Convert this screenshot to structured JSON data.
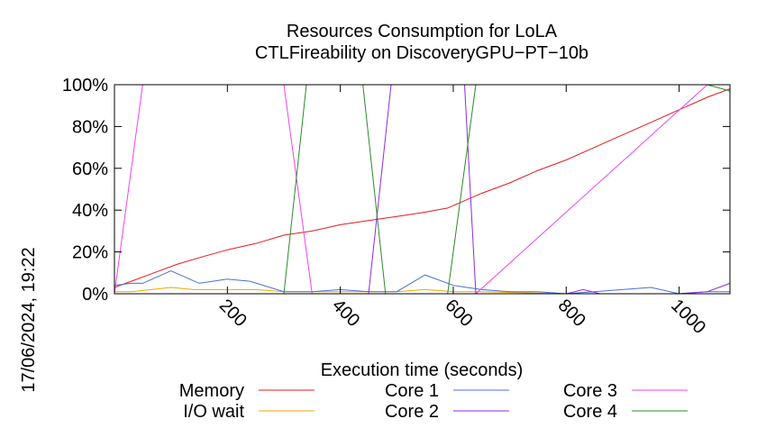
{
  "stamp": "17/06/2024, 19:22",
  "chart_data": {
    "type": "line",
    "title": "Resources Consumption for LoLA",
    "subtitle": "CTLFireability on DiscoveryGPU−PT−10b",
    "xlabel": "Execution time (seconds)",
    "ylabel": "",
    "xlim": [
      0,
      1090
    ],
    "ylim": [
      0,
      100
    ],
    "x_ticks": [
      200,
      400,
      600,
      800,
      1000
    ],
    "x_tick_labels": [
      "200",
      "400",
      "600",
      "800",
      "1000"
    ],
    "y_ticks": [
      0,
      20,
      40,
      60,
      80,
      100
    ],
    "y_tick_labels": [
      "0%",
      "20%",
      "40%",
      "60%",
      "80%",
      "100%"
    ],
    "grid": false,
    "legend_position": "bottom",
    "series": [
      {
        "name": "Memory",
        "color": "#e41a1c",
        "x": [
          0,
          30,
          70,
          110,
          160,
          200,
          250,
          300,
          350,
          400,
          450,
          500,
          550,
          590,
          650,
          700,
          750,
          800,
          850,
          900,
          950,
          1000,
          1050,
          1090
        ],
        "y": [
          3,
          6,
          10,
          14,
          18,
          21,
          24,
          28,
          30,
          33,
          35,
          37,
          39,
          41,
          48,
          53,
          59,
          64,
          70,
          76,
          82,
          88,
          94,
          98
        ]
      },
      {
        "name": "I/O wait",
        "color": "#f0a500",
        "x": [
          0,
          30,
          100,
          140,
          200,
          250,
          300,
          350,
          500,
          550,
          600,
          650,
          800,
          850,
          900,
          950,
          1000,
          1050,
          1090
        ],
        "y": [
          1,
          1,
          3,
          2,
          2,
          2,
          1,
          1,
          1,
          2,
          1,
          1,
          0,
          0,
          0,
          0,
          0,
          0,
          0
        ]
      },
      {
        "name": "Core 1",
        "color": "#4a6fd8",
        "x": [
          0,
          30,
          50,
          100,
          150,
          200,
          240,
          300,
          350,
          400,
          450,
          500,
          550,
          600,
          650,
          700,
          750,
          800,
          850,
          900,
          950,
          1000,
          1050,
          1090
        ],
        "y": [
          4,
          5,
          5,
          11,
          5,
          7,
          6,
          1,
          1,
          2,
          1,
          1,
          9,
          4,
          2,
          1,
          1,
          0,
          1,
          2,
          3,
          0,
          1,
          1
        ]
      },
      {
        "name": "Core 2",
        "color": "#8a2be2",
        "x": [
          0,
          300,
          350,
          400,
          450,
          490,
          620,
          640,
          800,
          830,
          860,
          900,
          1000,
          1050,
          1090
        ],
        "y": [
          0,
          0,
          0,
          0,
          0,
          100,
          100,
          0,
          0,
          2,
          0,
          0,
          0,
          1,
          5
        ]
      },
      {
        "name": "Core 3",
        "color": "#ee44ee",
        "x": [
          0,
          50,
          300,
          350,
          500,
          640,
          1050,
          1090
        ],
        "y": [
          0,
          100,
          100,
          0,
          0,
          0,
          100,
          100
        ]
      },
      {
        "name": "Core 4",
        "color": "#2a8a2a",
        "x": [
          0,
          300,
          340,
          440,
          480,
          590,
          640,
          1050,
          1090
        ],
        "y": [
          0,
          0,
          100,
          100,
          0,
          0,
          100,
          100,
          97
        ]
      }
    ]
  }
}
